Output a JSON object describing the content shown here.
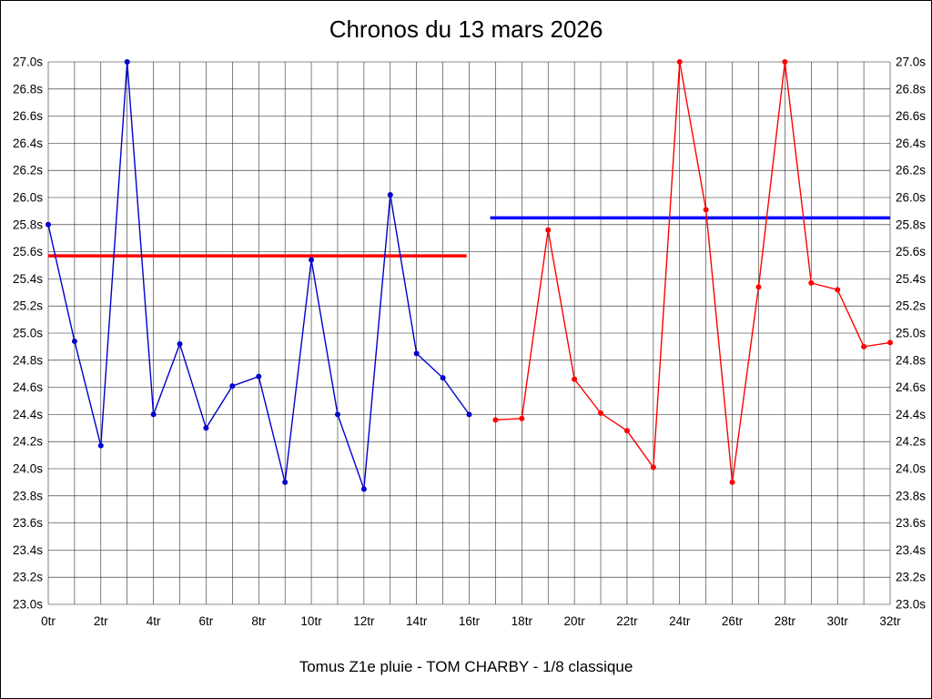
{
  "title": "Chronos du 13 mars 2026",
  "caption": "Tomus Z1e pluie - TOM CHARBY - 1/8 classique",
  "chart_data": {
    "type": "line",
    "title": "Chronos du 13 mars 2026",
    "subtitle": "Tomus Z1e pluie - TOM CHARBY - 1/8 classique",
    "xlabel": "",
    "ylabel": "",
    "xlim": [
      0,
      32
    ],
    "ylim": [
      23.0,
      27.0
    ],
    "x_grid_step": 1,
    "y_grid_step": 0.2,
    "grid": true,
    "legend": "none",
    "x_unit": "tr",
    "y_unit": "s",
    "x_ticks": [
      {
        "value": 0,
        "label": "0tr"
      },
      {
        "value": 2,
        "label": "2tr"
      },
      {
        "value": 4,
        "label": "4tr"
      },
      {
        "value": 6,
        "label": "6tr"
      },
      {
        "value": 8,
        "label": "8tr"
      },
      {
        "value": 10,
        "label": "10tr"
      },
      {
        "value": 12,
        "label": "12tr"
      },
      {
        "value": 14,
        "label": "14tr"
      },
      {
        "value": 16,
        "label": "16tr"
      },
      {
        "value": 18,
        "label": "18tr"
      },
      {
        "value": 20,
        "label": "20tr"
      },
      {
        "value": 22,
        "label": "22tr"
      },
      {
        "value": 24,
        "label": "24tr"
      },
      {
        "value": 26,
        "label": "26tr"
      },
      {
        "value": 28,
        "label": "28tr"
      },
      {
        "value": 30,
        "label": "30tr"
      },
      {
        "value": 32,
        "label": "32tr"
      }
    ],
    "y_ticks": [
      {
        "value": 27.0,
        "label": "27.0s"
      },
      {
        "value": 26.8,
        "label": "26.8s"
      },
      {
        "value": 26.6,
        "label": "26.6s"
      },
      {
        "value": 26.4,
        "label": "26.4s"
      },
      {
        "value": 26.2,
        "label": "26.2s"
      },
      {
        "value": 26.0,
        "label": "26.0s"
      },
      {
        "value": 25.8,
        "label": "25.8s"
      },
      {
        "value": 25.6,
        "label": "25.6s"
      },
      {
        "value": 25.4,
        "label": "25.4s"
      },
      {
        "value": 25.2,
        "label": "25.2s"
      },
      {
        "value": 25.0,
        "label": "25.0s"
      },
      {
        "value": 24.8,
        "label": "24.8s"
      },
      {
        "value": 24.6,
        "label": "24.6s"
      },
      {
        "value": 24.4,
        "label": "24.4s"
      },
      {
        "value": 24.2,
        "label": "24.2s"
      },
      {
        "value": 24.0,
        "label": "24.0s"
      },
      {
        "value": 23.8,
        "label": "23.8s"
      },
      {
        "value": 23.6,
        "label": "23.6s"
      },
      {
        "value": 23.4,
        "label": "23.4s"
      },
      {
        "value": 23.2,
        "label": "23.2s"
      },
      {
        "value": 23.0,
        "label": "23.0s"
      }
    ],
    "series": [
      {
        "name": "first-half-laps",
        "color": "#0000cc",
        "x": [
          0,
          1,
          2,
          3,
          4,
          5,
          6,
          7,
          8,
          9,
          10,
          11,
          12,
          13,
          14,
          15,
          16
        ],
        "y": [
          25.8,
          24.94,
          24.17,
          27.0,
          24.4,
          24.92,
          24.3,
          24.61,
          24.68,
          23.9,
          25.54,
          24.4,
          23.85,
          26.02,
          24.85,
          24.67,
          24.4
        ]
      },
      {
        "name": "second-half-laps",
        "color": "#ff0000",
        "x": [
          17,
          18,
          19,
          20,
          21,
          22,
          23,
          24,
          25,
          26,
          27,
          28,
          29,
          30,
          31,
          32
        ],
        "y": [
          24.36,
          24.37,
          25.76,
          24.66,
          24.41,
          24.28,
          24.01,
          27.0,
          25.91,
          23.9,
          25.34,
          27.0,
          25.37,
          25.32,
          24.9,
          24.93
        ]
      }
    ],
    "reference_lines": [
      {
        "name": "red-reference-line",
        "color": "#ff0000",
        "y": 25.57,
        "x_start": 0,
        "x_end": 15.9
      },
      {
        "name": "blue-reference-line",
        "color": "#0000ff",
        "y": 25.85,
        "x_start": 16.8,
        "x_end": 32
      }
    ]
  }
}
